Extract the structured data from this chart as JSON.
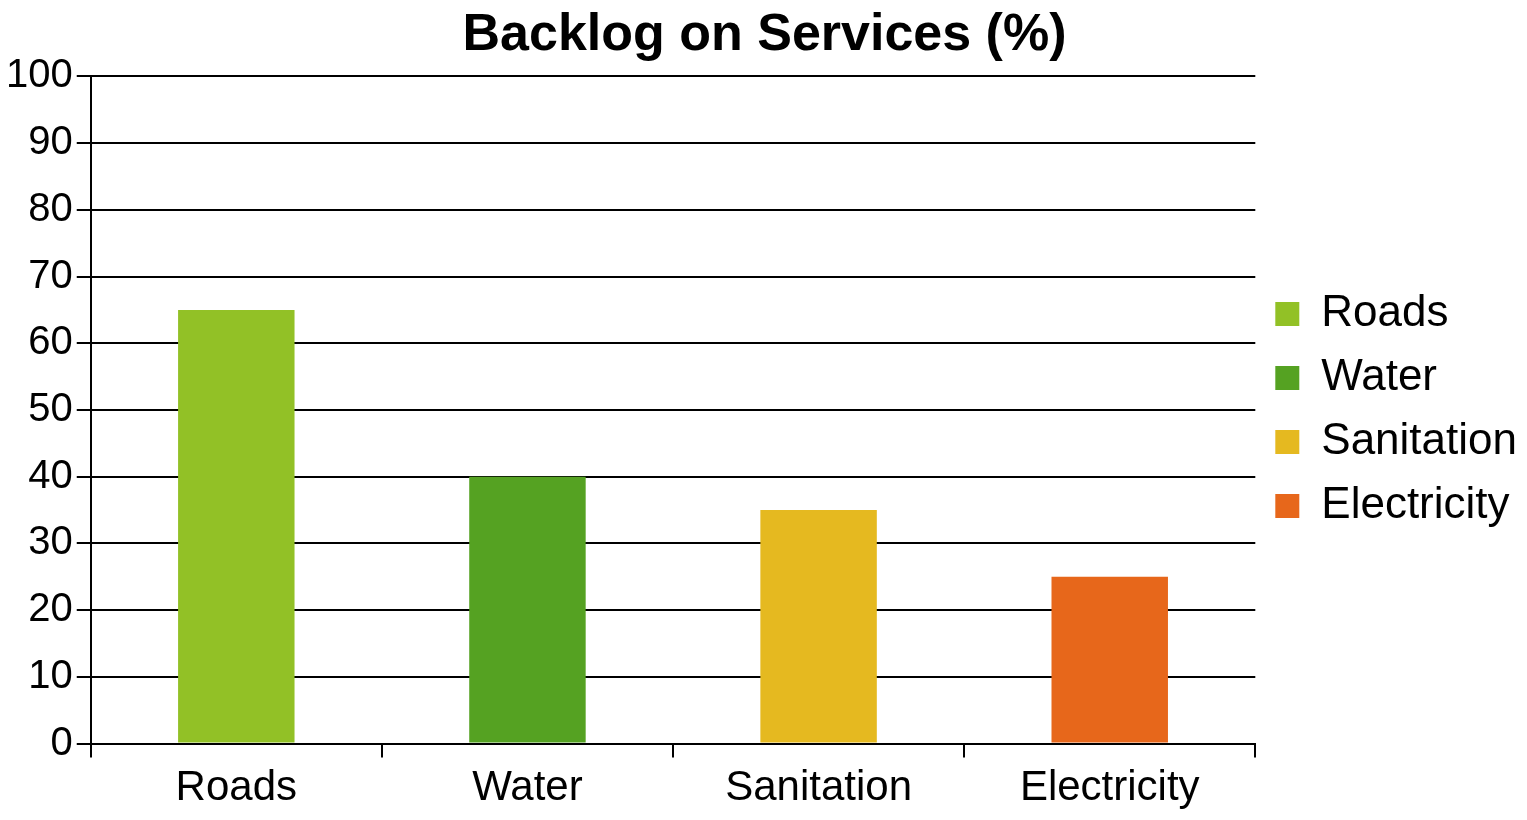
{
  "chart_data": {
    "type": "bar",
    "title": "Backlog on Services (%)",
    "categories": [
      "Roads",
      "Water",
      "Sanitation",
      "Electricity"
    ],
    "series": [
      {
        "name": "Roads",
        "color": "#92c126",
        "values": [
          65,
          null,
          null,
          null
        ]
      },
      {
        "name": "Water",
        "color": "#55a222",
        "values": [
          null,
          40,
          null,
          null
        ]
      },
      {
        "name": "Sanitation",
        "color": "#e5b920",
        "values": [
          null,
          null,
          35,
          null
        ]
      },
      {
        "name": "Electricity",
        "color": "#e7671b",
        "values": [
          null,
          null,
          null,
          25
        ]
      }
    ],
    "ylim": [
      0,
      100
    ],
    "yticks": [
      0,
      10,
      20,
      30,
      40,
      50,
      60,
      70,
      80,
      90,
      100
    ],
    "grid": "y",
    "legend": "right"
  }
}
